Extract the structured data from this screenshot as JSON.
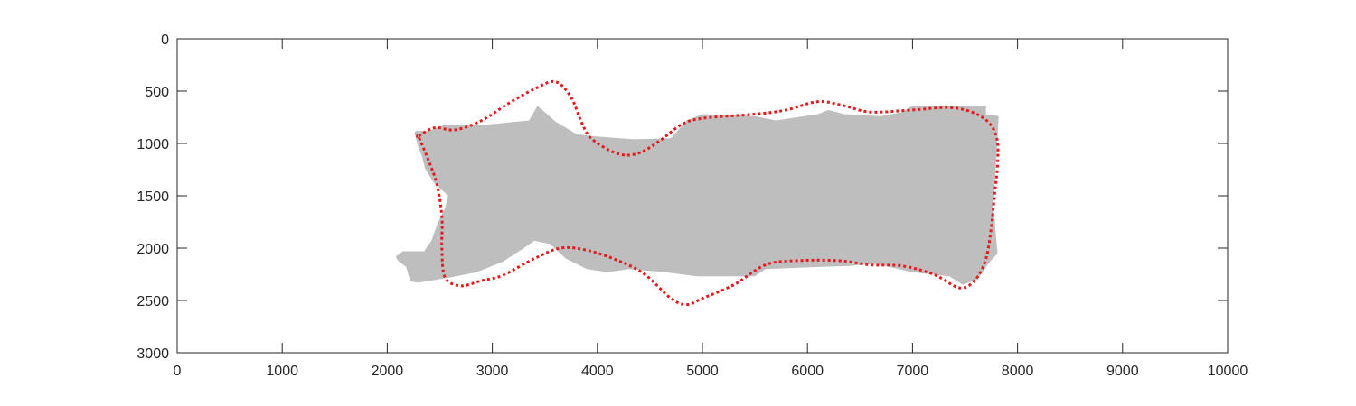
{
  "chart_data": {
    "type": "area",
    "title": "",
    "xlabel": "",
    "ylabel": "",
    "xlim": [
      0,
      10000
    ],
    "ylim": [
      3000,
      0
    ],
    "y_reversed": true,
    "grid": false,
    "x_ticks": [
      0,
      1000,
      2000,
      3000,
      4000,
      5000,
      6000,
      7000,
      8000,
      9000,
      10000
    ],
    "y_ticks": [
      0,
      500,
      1000,
      1500,
      2000,
      2500,
      3000
    ],
    "series": [
      {
        "kind": "filled-region",
        "color": "#bebebe",
        "points": [
          [
            2270,
            880
          ],
          [
            2400,
            880
          ],
          [
            2550,
            820
          ],
          [
            2950,
            820
          ],
          [
            3350,
            780
          ],
          [
            3430,
            640
          ],
          [
            3500,
            700
          ],
          [
            3600,
            790
          ],
          [
            3800,
            910
          ],
          [
            3950,
            930
          ],
          [
            4350,
            960
          ],
          [
            4700,
            950
          ],
          [
            4850,
            780
          ],
          [
            5000,
            720
          ],
          [
            5500,
            740
          ],
          [
            5700,
            780
          ],
          [
            6100,
            720
          ],
          [
            6200,
            680
          ],
          [
            6350,
            720
          ],
          [
            6700,
            740
          ],
          [
            6900,
            700
          ],
          [
            7000,
            640
          ],
          [
            7700,
            640
          ],
          [
            7700,
            720
          ],
          [
            7820,
            740
          ],
          [
            7800,
            1100
          ],
          [
            7770,
            1600
          ],
          [
            7810,
            2050
          ],
          [
            7720,
            2150
          ],
          [
            7620,
            2300
          ],
          [
            7480,
            2350
          ],
          [
            7350,
            2270
          ],
          [
            7000,
            2230
          ],
          [
            6650,
            2150
          ],
          [
            6400,
            2170
          ],
          [
            6100,
            2180
          ],
          [
            5600,
            2200
          ],
          [
            5500,
            2270
          ],
          [
            4950,
            2270
          ],
          [
            4650,
            2230
          ],
          [
            4300,
            2200
          ],
          [
            4100,
            2230
          ],
          [
            3900,
            2200
          ],
          [
            3700,
            2100
          ],
          [
            3550,
            1960
          ],
          [
            3400,
            1930
          ],
          [
            3300,
            2000
          ],
          [
            3100,
            2130
          ],
          [
            2850,
            2230
          ],
          [
            2600,
            2280
          ],
          [
            2300,
            2330
          ],
          [
            2220,
            2320
          ],
          [
            2180,
            2180
          ],
          [
            2100,
            2120
          ],
          [
            2080,
            2080
          ],
          [
            2150,
            2030
          ],
          [
            2350,
            2030
          ],
          [
            2420,
            1930
          ],
          [
            2480,
            1760
          ],
          [
            2550,
            1620
          ],
          [
            2580,
            1500
          ],
          [
            2440,
            1370
          ],
          [
            2360,
            1240
          ],
          [
            2330,
            1120
          ],
          [
            2290,
            1020
          ],
          [
            2260,
            900
          ]
        ]
      },
      {
        "kind": "dotted-contour",
        "color": "#e41a1c",
        "points": [
          [
            2300,
            930
          ],
          [
            2450,
            850
          ],
          [
            2650,
            870
          ],
          [
            2900,
            780
          ],
          [
            3150,
            620
          ],
          [
            3400,
            480
          ],
          [
            3600,
            410
          ],
          [
            3750,
            560
          ],
          [
            3850,
            800
          ],
          [
            3950,
            960
          ],
          [
            4200,
            1100
          ],
          [
            4400,
            1090
          ],
          [
            4600,
            970
          ],
          [
            4800,
            820
          ],
          [
            5000,
            760
          ],
          [
            5500,
            720
          ],
          [
            5800,
            680
          ],
          [
            6100,
            600
          ],
          [
            6350,
            640
          ],
          [
            6600,
            700
          ],
          [
            7000,
            680
          ],
          [
            7400,
            660
          ],
          [
            7680,
            760
          ],
          [
            7800,
            940
          ],
          [
            7810,
            1200
          ],
          [
            7780,
            1500
          ],
          [
            7750,
            1800
          ],
          [
            7700,
            2100
          ],
          [
            7600,
            2300
          ],
          [
            7450,
            2380
          ],
          [
            7200,
            2250
          ],
          [
            6900,
            2170
          ],
          [
            6600,
            2160
          ],
          [
            6300,
            2120
          ],
          [
            5900,
            2120
          ],
          [
            5600,
            2160
          ],
          [
            5300,
            2350
          ],
          [
            5000,
            2480
          ],
          [
            4850,
            2540
          ],
          [
            4700,
            2480
          ],
          [
            4450,
            2250
          ],
          [
            4200,
            2120
          ],
          [
            3900,
            2020
          ],
          [
            3650,
            2000
          ],
          [
            3400,
            2100
          ],
          [
            3100,
            2260
          ],
          [
            2900,
            2310
          ],
          [
            2700,
            2360
          ],
          [
            2550,
            2280
          ],
          [
            2520,
            2000
          ],
          [
            2520,
            1700
          ],
          [
            2470,
            1380
          ],
          [
            2380,
            1130
          ],
          [
            2300,
            940
          ]
        ]
      }
    ]
  }
}
